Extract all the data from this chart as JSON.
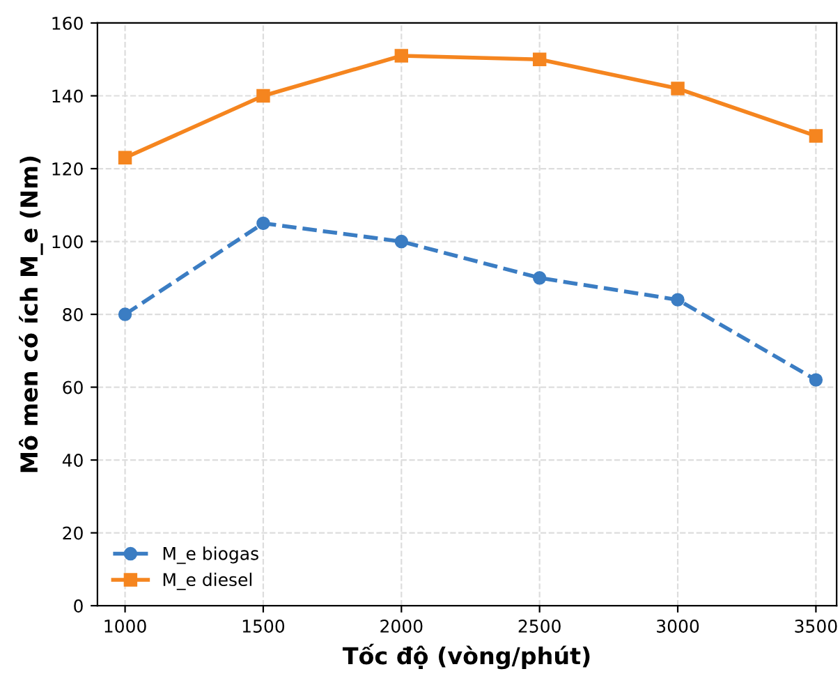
{
  "chart_data": {
    "type": "line",
    "xlabel": "Tốc độ (vòng/phút)",
    "ylabel": "Mô men có ích M_e (Nm)",
    "x": [
      1000,
      1500,
      2000,
      2500,
      3000,
      3500
    ],
    "series": [
      {
        "name": "M_e biogas",
        "color": "#3b7dc3",
        "marker": "circle",
        "line_style": "dashed",
        "values": [
          80,
          105,
          100,
          90,
          84,
          62
        ]
      },
      {
        "name": "M_e diesel",
        "color": "#f5851f",
        "marker": "square",
        "line_style": "solid",
        "values": [
          123,
          140,
          151,
          150,
          142,
          129
        ]
      }
    ],
    "xlim": [
      900,
      3575
    ],
    "xticks": [
      1000,
      1500,
      2000,
      2500,
      3000,
      3500
    ],
    "ylim": [
      0,
      160
    ],
    "yticks": [
      0,
      20,
      40,
      60,
      80,
      100,
      120,
      140,
      160
    ],
    "grid": true,
    "legend": "bottom left"
  }
}
